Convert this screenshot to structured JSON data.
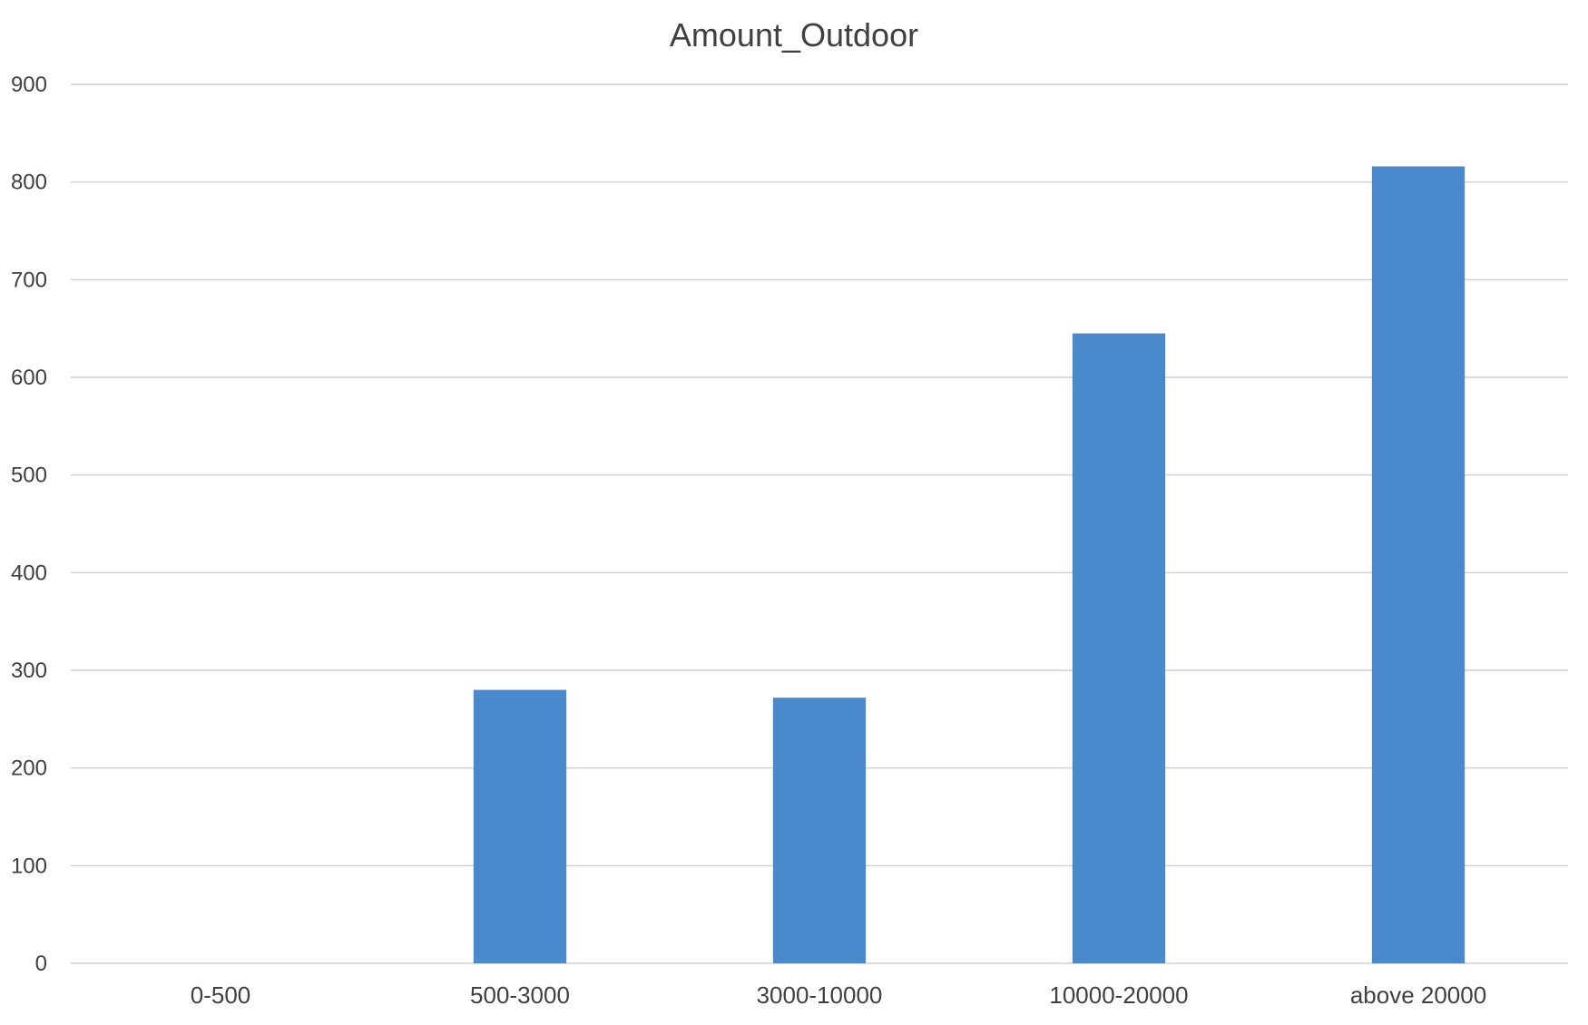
{
  "chart_data": {
    "type": "bar",
    "title": "Amount_Outdoor",
    "xlabel": "",
    "ylabel": "",
    "categories": [
      "0-500",
      "500-3000",
      "3000-10000",
      "10000-20000",
      "above 20000"
    ],
    "values": [
      0,
      280,
      272,
      645,
      816
    ],
    "ylim": [
      0,
      900
    ],
    "yticks": [
      0,
      100,
      200,
      300,
      400,
      500,
      600,
      700,
      800,
      900
    ],
    "grid": true,
    "legend": "none",
    "bar_color": "#4A89CC",
    "grid_color": "#D0D0D0"
  }
}
